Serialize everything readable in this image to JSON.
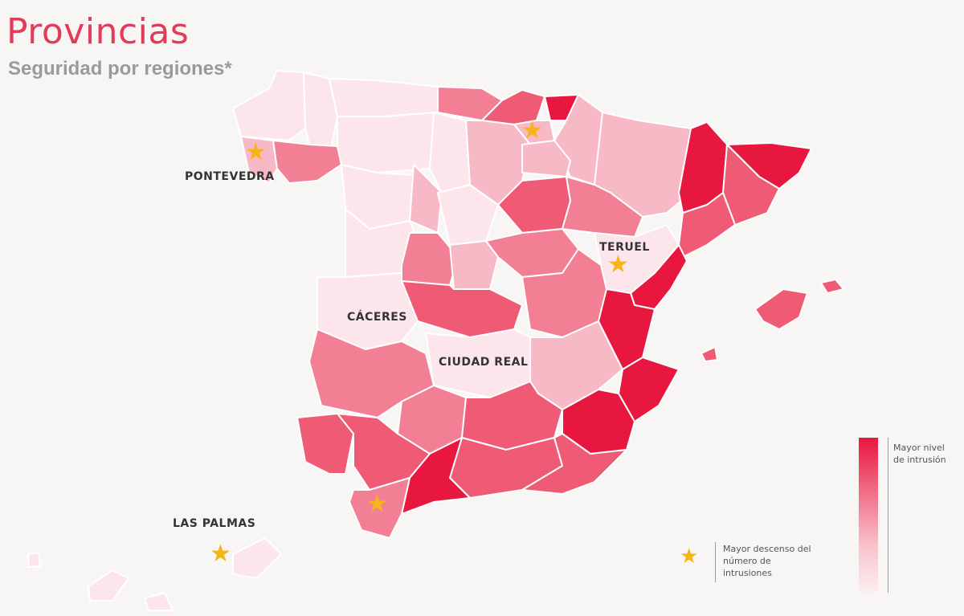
{
  "header": {
    "title": "Provincias",
    "subtitle": "Seguridad por regiones*"
  },
  "colors": {
    "high": "#e8173f",
    "medium_high": "#ef5a75",
    "medium": "#f27f94",
    "low": "#f8b9c6",
    "lowest": "#fce6eb",
    "star": "#f5b418",
    "background": "#f8f6f5"
  },
  "provinces_labeled": {
    "pontevedra": "PONTEVEDRA",
    "teruel": "TERUEL",
    "caceres": "CÁCERES",
    "ciudad_real": "CIUDAD REAL",
    "las_palmas": "LAS PALMAS"
  },
  "legend": {
    "scale_label": "Mayor nivel de intrusión",
    "star_label": "Mayor descenso del número de intrusiones",
    "star_icon": "star-icon"
  }
}
